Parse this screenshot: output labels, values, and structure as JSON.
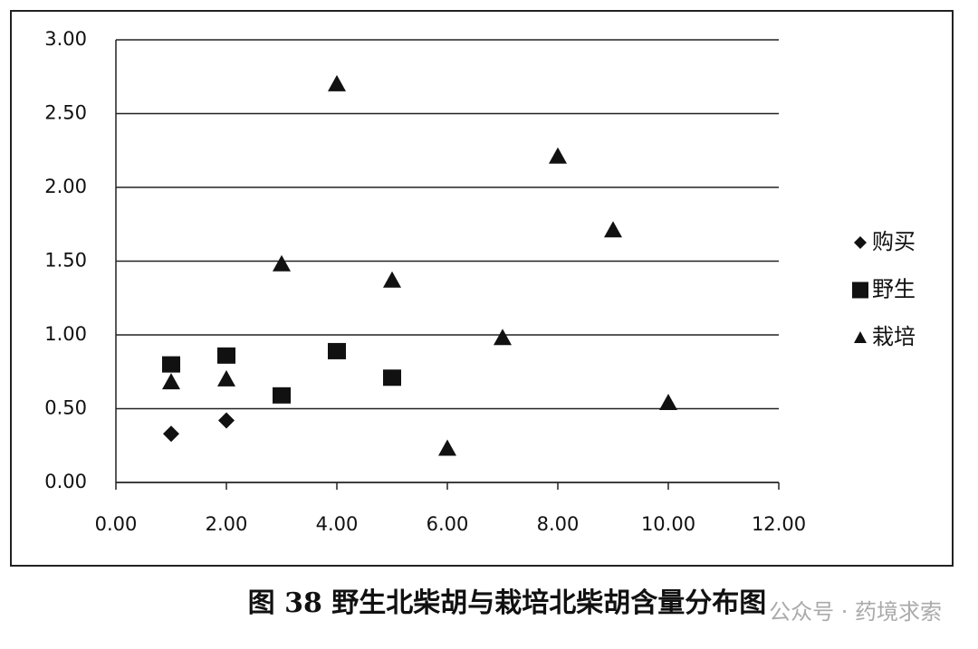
{
  "chart_data": {
    "type": "scatter",
    "caption": "图 38 野生北柴胡与栽培北柴胡含量分布图",
    "watermark": "公众号 · 药境求索",
    "xlim": [
      0,
      12
    ],
    "xticks": [
      {
        "value": 0,
        "label": "0.00"
      },
      {
        "value": 2,
        "label": "2.00"
      },
      {
        "value": 4,
        "label": "4.00"
      },
      {
        "value": 6,
        "label": "6.00"
      },
      {
        "value": 8,
        "label": "8.00"
      },
      {
        "value": 10,
        "label": "10.00"
      },
      {
        "value": 12,
        "label": "12.00"
      }
    ],
    "ylim": [
      0,
      3
    ],
    "yticks": [
      {
        "value": 0,
        "label": "0.00"
      },
      {
        "value": 0.5,
        "label": "0.50"
      },
      {
        "value": 1,
        "label": "1.00"
      },
      {
        "value": 1.5,
        "label": "1.50"
      },
      {
        "value": 2,
        "label": "2.00"
      },
      {
        "value": 2.5,
        "label": "2.50"
      },
      {
        "value": 3,
        "label": "3.00"
      }
    ],
    "grid": true,
    "legend": "right",
    "series": [
      {
        "name": "购买",
        "color": "#111111",
        "marker": "diamond",
        "x": [
          1,
          2
        ],
        "values": [
          0.33,
          0.42
        ]
      },
      {
        "name": "野生",
        "color": "#111111",
        "marker": "square",
        "x": [
          1,
          2,
          3,
          4,
          5
        ],
        "values": [
          0.8,
          0.86,
          0.59,
          0.89,
          0.71
        ]
      },
      {
        "name": "栽培",
        "color": "#111111",
        "marker": "triangle",
        "x": [
          1,
          2,
          3,
          4,
          5,
          6,
          7,
          8,
          9,
          10
        ],
        "values": [
          0.68,
          0.7,
          1.48,
          2.7,
          1.37,
          0.23,
          0.98,
          2.21,
          1.71,
          0.54
        ]
      }
    ]
  }
}
